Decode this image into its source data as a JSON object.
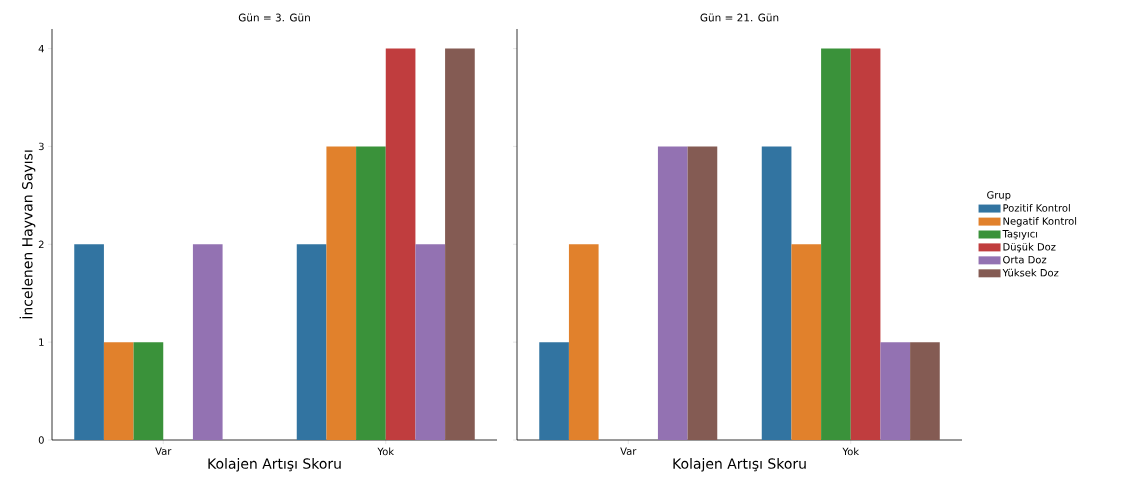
{
  "chart_data": [
    {
      "type": "bar",
      "title": "Gün = 3. Gün",
      "xlabel": "Kolajen Artışı Skoru",
      "ylabel": "İncelenen Hayvan Sayısı",
      "categories": [
        "Var",
        "Yok"
      ],
      "ylim": [
        0,
        4.2
      ],
      "yticks": [
        0,
        1,
        2,
        3,
        4
      ],
      "series": [
        {
          "color": "#3274a1",
          "values": [
            2,
            2
          ]
        },
        {
          "color": "#e1812c",
          "values": [
            1,
            3
          ]
        },
        {
          "color": "#3a923a",
          "values": [
            1,
            3
          ]
        },
        {
          "color": "#c03d3e",
          "values": [
            null,
            4
          ]
        },
        {
          "color": "#9372b2",
          "values": [
            2,
            2
          ]
        },
        {
          "color": "#845b53",
          "values": [
            null,
            4
          ]
        }
      ]
    },
    {
      "type": "bar",
      "title": "Gün = 21. Gün",
      "xlabel": "Kolajen Artışı Skoru",
      "categories": [
        "Var",
        "Yok"
      ],
      "ylim": [
        0,
        4.2
      ],
      "yticks": [
        0,
        1,
        2,
        3,
        4
      ],
      "tick_labels": "x",
      "legend": "right",
      "legend_title": "Grup",
      "series": [
        {
          "name": "Pozitif Kontrol",
          "color": "#3274a1",
          "values": [
            1,
            3
          ]
        },
        {
          "name": "Negatif Kontrol",
          "color": "#e1812c",
          "values": [
            2,
            2
          ]
        },
        {
          "name": "Taşıyıcı",
          "color": "#3a923a",
          "values": [
            null,
            4
          ]
        },
        {
          "name": "Düşük Doz",
          "color": "#c03d3e",
          "values": [
            null,
            4
          ]
        },
        {
          "name": "Orta Doz",
          "color": "#9372b2",
          "values": [
            3,
            1
          ]
        },
        {
          "name": "Yüksek Doz",
          "color": "#845b53",
          "values": [
            3,
            1
          ]
        }
      ]
    }
  ]
}
